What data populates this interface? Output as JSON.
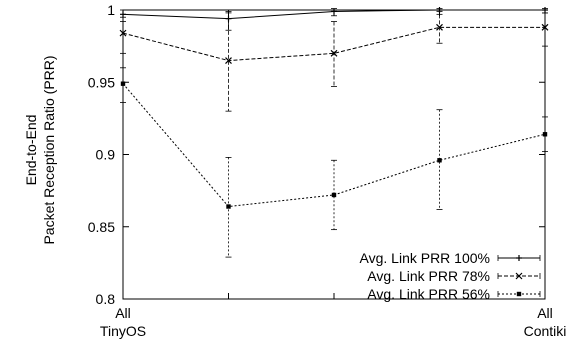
{
  "chart_data": {
    "type": "line",
    "title": "",
    "ylabel_lines": [
      "End-to-End",
      "Packet Reception Ratio (PRR)"
    ],
    "xlabel": "",
    "x": [
      0,
      1,
      2,
      3,
      4
    ],
    "xlim": [
      0,
      4
    ],
    "ylim": [
      0.8,
      1.0
    ],
    "yticks": [
      0.8,
      0.85,
      0.9,
      0.95,
      1
    ],
    "ytick_labels": [
      "0.8",
      "0.85",
      "0.9",
      "0.95",
      "1"
    ],
    "xtick_labels": [
      {
        "x": 0,
        "lines": [
          "All",
          "TinyOS"
        ]
      },
      {
        "x": 4,
        "lines": [
          "All",
          "Contiki"
        ]
      }
    ],
    "grid": false,
    "legend_position": "bottom-right",
    "series": [
      {
        "name": "Avg. Link PRR 100%",
        "values": [
          0.997,
          0.994,
          0.999,
          1.0,
          1.0
        ],
        "err_low": [
          0.992,
          0.986,
          0.996,
          0.999,
          0.998
        ],
        "err_high": [
          1.0,
          0.999,
          1.001,
          1.001,
          1.001
        ],
        "marker": "plus",
        "dash": "solid"
      },
      {
        "name": "Avg. Link PRR 78%",
        "values": [
          0.984,
          0.965,
          0.97,
          0.988,
          0.988
        ],
        "err_low": [
          0.97,
          0.93,
          0.947,
          0.977,
          0.975
        ],
        "err_high": [
          0.995,
          0.998,
          0.992,
          0.997,
          0.998
        ],
        "marker": "x",
        "dash": "dashed"
      },
      {
        "name": "Avg. Link PRR 56%",
        "values": [
          0.949,
          0.864,
          0.872,
          0.896,
          0.914
        ],
        "err_low": [
          0.936,
          0.829,
          0.848,
          0.862,
          0.902
        ],
        "err_high": [
          0.96,
          0.898,
          0.896,
          0.931,
          0.926
        ],
        "marker": "square",
        "dash": "dotted"
      }
    ]
  }
}
